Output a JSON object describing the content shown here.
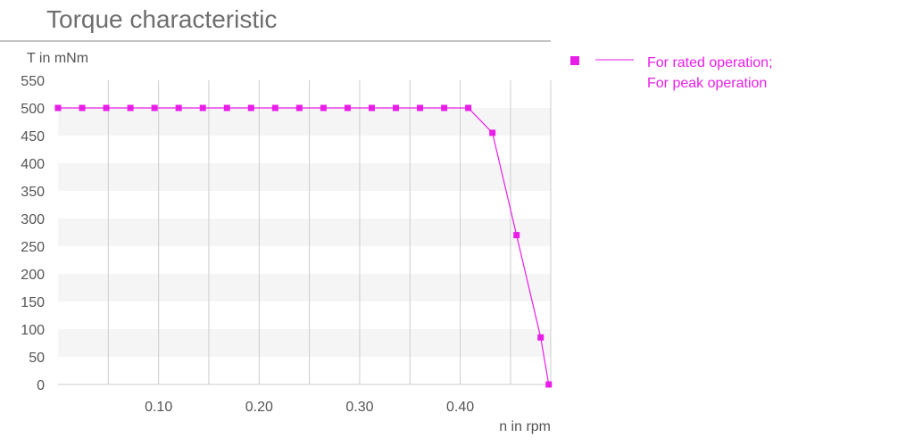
{
  "chart_data": {
    "type": "line",
    "title": "Torque characteristic",
    "ylabel": "T in mNm",
    "xlabel": "n in rpm",
    "xlim": [
      0,
      0.49
    ],
    "ylim": [
      0,
      550
    ],
    "x_ticks": [
      0.1,
      0.2,
      0.3,
      0.4
    ],
    "x_tick_labels": [
      "0.10",
      "0.20",
      "0.30",
      "0.40"
    ],
    "y_ticks": [
      0,
      50,
      100,
      150,
      200,
      250,
      300,
      350,
      400,
      450,
      500,
      550
    ],
    "y_tick_labels": [
      "0",
      "50",
      "100",
      "150",
      "200",
      "250",
      "300",
      "350",
      "400",
      "450",
      "500",
      "550"
    ],
    "grid": "vertical lines with alternating horizontal bands",
    "legend_position": "top-right",
    "colors": {
      "series": "#e81ee8",
      "band": "#f5f5f5",
      "grid": "#cccccc",
      "title_rule": "#888888"
    },
    "series": [
      {
        "name": "For rated operation; For peak operation",
        "legend_lines": [
          "For rated operation;",
          "For peak operation"
        ],
        "marker": "square",
        "points": [
          [
            0.0,
            500
          ],
          [
            0.024,
            500
          ],
          [
            0.048,
            500
          ],
          [
            0.072,
            500
          ],
          [
            0.096,
            500
          ],
          [
            0.12,
            500
          ],
          [
            0.144,
            500
          ],
          [
            0.168,
            500
          ],
          [
            0.192,
            500
          ],
          [
            0.216,
            500
          ],
          [
            0.24,
            500
          ],
          [
            0.264,
            500
          ],
          [
            0.288,
            500
          ],
          [
            0.312,
            500
          ],
          [
            0.336,
            500
          ],
          [
            0.36,
            500
          ],
          [
            0.384,
            500
          ],
          [
            0.408,
            500
          ],
          [
            0.432,
            455
          ],
          [
            0.456,
            270
          ],
          [
            0.48,
            85
          ],
          [
            0.488,
            0
          ]
        ]
      }
    ]
  }
}
